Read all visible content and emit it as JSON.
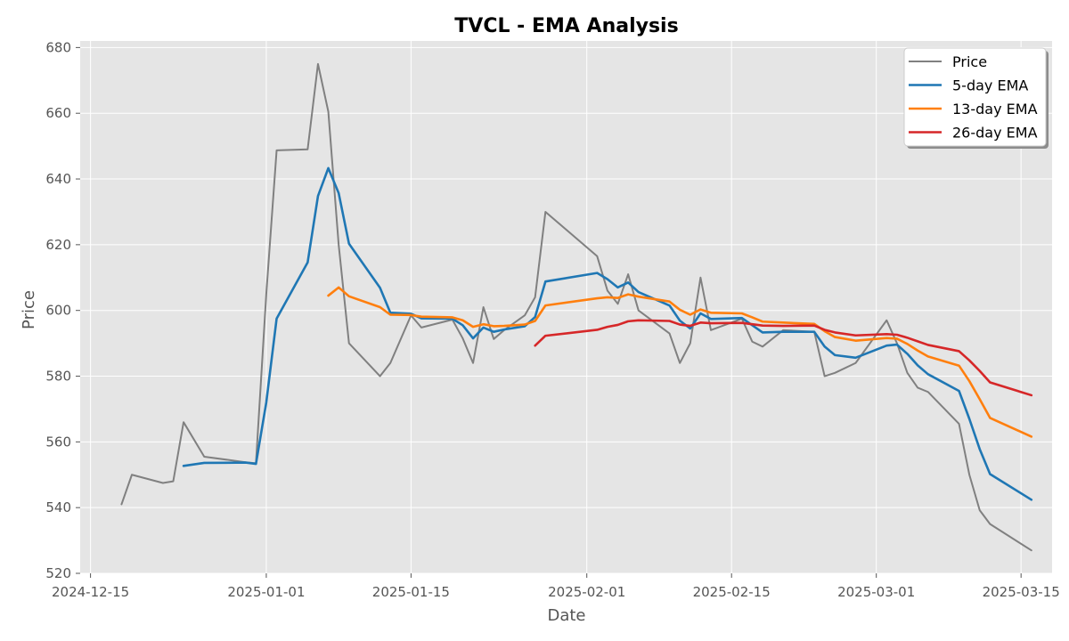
{
  "chart_data": {
    "type": "line",
    "title": "TVCL - EMA Analysis",
    "xlabel": "Date",
    "ylabel": "Price",
    "ylim": [
      520,
      682
    ],
    "xlim": [
      "2024-12-14",
      "2025-03-18"
    ],
    "grid": true,
    "legend": "top-right",
    "y_ticks": [
      520,
      540,
      560,
      580,
      600,
      620,
      640,
      660,
      680
    ],
    "x_ticks": [
      {
        "date": "2024-12-15",
        "label": "2024-12-15"
      },
      {
        "date": "2025-01-01",
        "label": "2025-01-01"
      },
      {
        "date": "2025-01-15",
        "label": "2025-01-15"
      },
      {
        "date": "2025-02-01",
        "label": "2025-02-01"
      },
      {
        "date": "2025-02-15",
        "label": "2025-02-15"
      },
      {
        "date": "2025-03-01",
        "label": "2025-03-01"
      },
      {
        "date": "2025-03-15",
        "label": "2025-03-15"
      }
    ],
    "series": [
      {
        "name": "Price",
        "color": "#808080",
        "points": [
          [
            "2024-12-18",
            541
          ],
          [
            "2024-12-19",
            550
          ],
          [
            "2024-12-22",
            547.5
          ],
          [
            "2024-12-23",
            548
          ],
          [
            "2024-12-24",
            566
          ],
          [
            "2024-12-26",
            555.5
          ],
          [
            "2024-12-30",
            553.8
          ],
          [
            "2024-12-31",
            553.5
          ],
          [
            "2025-01-01",
            605
          ],
          [
            "2025-01-02",
            648.7
          ],
          [
            "2025-01-05",
            649
          ],
          [
            "2025-01-06",
            675
          ],
          [
            "2025-01-07",
            660.5
          ],
          [
            "2025-01-08",
            620
          ],
          [
            "2025-01-09",
            590
          ],
          [
            "2025-01-12",
            580
          ],
          [
            "2025-01-13",
            584
          ],
          [
            "2025-01-15",
            598.5
          ],
          [
            "2025-01-16",
            594.8
          ],
          [
            "2025-01-19",
            597.2
          ],
          [
            "2025-01-20",
            591.5
          ],
          [
            "2025-01-21",
            584
          ],
          [
            "2025-01-22",
            601
          ],
          [
            "2025-01-23",
            591.3
          ],
          [
            "2025-01-24",
            594
          ],
          [
            "2025-01-26",
            598.5
          ],
          [
            "2025-01-27",
            604
          ],
          [
            "2025-01-28",
            630
          ],
          [
            "2025-02-02",
            616.5
          ],
          [
            "2025-02-03",
            606
          ],
          [
            "2025-02-04",
            602
          ],
          [
            "2025-02-05",
            611
          ],
          [
            "2025-02-06",
            600
          ],
          [
            "2025-02-09",
            593
          ],
          [
            "2025-02-10",
            584
          ],
          [
            "2025-02-11",
            590
          ],
          [
            "2025-02-12",
            610
          ],
          [
            "2025-02-13",
            594
          ],
          [
            "2025-02-16",
            597.5
          ],
          [
            "2025-02-17",
            590.5
          ],
          [
            "2025-02-18",
            589
          ],
          [
            "2025-02-20",
            594
          ],
          [
            "2025-02-23",
            593.5
          ],
          [
            "2025-02-24",
            580
          ],
          [
            "2025-02-25",
            581
          ],
          [
            "2025-02-27",
            584
          ],
          [
            "2025-03-02",
            597
          ],
          [
            "2025-03-03",
            590
          ],
          [
            "2025-03-04",
            581
          ],
          [
            "2025-03-05",
            576.5
          ],
          [
            "2025-03-06",
            575.2
          ],
          [
            "2025-03-09",
            565.5
          ],
          [
            "2025-03-10",
            550
          ],
          [
            "2025-03-11",
            539.2
          ],
          [
            "2025-03-12",
            535
          ],
          [
            "2025-03-16",
            527
          ]
        ]
      },
      {
        "name": "5-day EMA",
        "color": "#1f77b4",
        "points": [
          [
            "2024-12-24",
            552.7
          ],
          [
            "2024-12-26",
            553.6
          ],
          [
            "2024-12-30",
            553.7
          ],
          [
            "2024-12-31",
            553.3
          ],
          [
            "2025-01-01",
            572
          ],
          [
            "2025-01-02",
            597.5
          ],
          [
            "2025-01-05",
            614.6
          ],
          [
            "2025-01-06",
            634.8
          ],
          [
            "2025-01-07",
            643.3
          ],
          [
            "2025-01-08",
            635.7
          ],
          [
            "2025-01-09",
            620.3
          ],
          [
            "2025-01-12",
            606.9
          ],
          [
            "2025-01-13",
            599.3
          ],
          [
            "2025-01-15",
            599
          ],
          [
            "2025-01-16",
            597.6
          ],
          [
            "2025-01-19",
            597.5
          ],
          [
            "2025-01-20",
            595.5
          ],
          [
            "2025-01-21",
            591.5
          ],
          [
            "2025-01-22",
            594.8
          ],
          [
            "2025-01-23",
            593.5
          ],
          [
            "2025-01-24",
            594.2
          ],
          [
            "2025-01-26",
            595.2
          ],
          [
            "2025-01-27",
            598
          ],
          [
            "2025-01-28",
            608.8
          ],
          [
            "2025-02-02",
            611.4
          ],
          [
            "2025-02-03",
            609.5
          ],
          [
            "2025-02-04",
            607
          ],
          [
            "2025-02-05",
            608.5
          ],
          [
            "2025-02-06",
            605.6
          ],
          [
            "2025-02-09",
            601.5
          ],
          [
            "2025-02-10",
            596.9
          ],
          [
            "2025-02-11",
            594.5
          ],
          [
            "2025-02-12",
            599.1
          ],
          [
            "2025-02-13",
            597.4
          ],
          [
            "2025-02-16",
            597.7
          ],
          [
            "2025-02-17",
            595.5
          ],
          [
            "2025-02-18",
            593.3
          ],
          [
            "2025-02-20",
            593.5
          ],
          [
            "2025-02-23",
            593.5
          ],
          [
            "2025-02-24",
            589
          ],
          [
            "2025-02-25",
            586.4
          ],
          [
            "2025-02-27",
            585.6
          ],
          [
            "2025-03-02",
            589.3
          ],
          [
            "2025-03-03",
            589.6
          ],
          [
            "2025-03-04",
            586.8
          ],
          [
            "2025-03-05",
            583.3
          ],
          [
            "2025-03-06",
            580.6
          ],
          [
            "2025-03-09",
            575.5
          ],
          [
            "2025-03-10",
            567
          ],
          [
            "2025-03-11",
            557.8
          ],
          [
            "2025-03-12",
            550.2
          ],
          [
            "2025-03-16",
            542.4
          ]
        ]
      },
      {
        "name": "13-day EMA",
        "color": "#ff7f0e",
        "points": [
          [
            "2025-01-07",
            604.5
          ],
          [
            "2025-01-08",
            607
          ],
          [
            "2025-01-09",
            604.3
          ],
          [
            "2025-01-12",
            601
          ],
          [
            "2025-01-13",
            598.7
          ],
          [
            "2025-01-15",
            598.6
          ],
          [
            "2025-01-16",
            598.1
          ],
          [
            "2025-01-19",
            597.9
          ],
          [
            "2025-01-20",
            597
          ],
          [
            "2025-01-21",
            595
          ],
          [
            "2025-01-22",
            595.8
          ],
          [
            "2025-01-23",
            595.2
          ],
          [
            "2025-01-24",
            595.3
          ],
          [
            "2025-01-26",
            595.7
          ],
          [
            "2025-01-27",
            596.8
          ],
          [
            "2025-01-28",
            601.5
          ],
          [
            "2025-02-02",
            603.7
          ],
          [
            "2025-02-03",
            604
          ],
          [
            "2025-02-04",
            603.8
          ],
          [
            "2025-02-05",
            604.9
          ],
          [
            "2025-02-06",
            604.2
          ],
          [
            "2025-02-09",
            602.7
          ],
          [
            "2025-02-10",
            600.2
          ],
          [
            "2025-02-11",
            598.7
          ],
          [
            "2025-02-12",
            600.3
          ],
          [
            "2025-02-13",
            599.3
          ],
          [
            "2025-02-16",
            599.1
          ],
          [
            "2025-02-17",
            597.9
          ],
          [
            "2025-02-18",
            596.6
          ],
          [
            "2025-02-20",
            596.3
          ],
          [
            "2025-02-23",
            595.9
          ],
          [
            "2025-02-24",
            593.7
          ],
          [
            "2025-02-25",
            591.9
          ],
          [
            "2025-02-27",
            590.8
          ],
          [
            "2025-03-02",
            591.6
          ],
          [
            "2025-03-03",
            591.4
          ],
          [
            "2025-03-04",
            589.8
          ],
          [
            "2025-03-05",
            587.8
          ],
          [
            "2025-03-06",
            586
          ],
          [
            "2025-03-09",
            583.2
          ],
          [
            "2025-03-10",
            578.5
          ],
          [
            "2025-03-11",
            573
          ],
          [
            "2025-03-12",
            567.3
          ],
          [
            "2025-03-16",
            561.6
          ]
        ]
      },
      {
        "name": "26-day EMA",
        "color": "#d62728",
        "points": [
          [
            "2025-01-27",
            589.3
          ],
          [
            "2025-01-28",
            592.3
          ],
          [
            "2025-02-02",
            594.1
          ],
          [
            "2025-02-03",
            595
          ],
          [
            "2025-02-04",
            595.6
          ],
          [
            "2025-02-05",
            596.7
          ],
          [
            "2025-02-06",
            597
          ],
          [
            "2025-02-09",
            596.8
          ],
          [
            "2025-02-10",
            595.7
          ],
          [
            "2025-02-11",
            595.3
          ],
          [
            "2025-02-12",
            596.3
          ],
          [
            "2025-02-13",
            596.1
          ],
          [
            "2025-02-16",
            596.2
          ],
          [
            "2025-02-17",
            595.8
          ],
          [
            "2025-02-18",
            595.4
          ],
          [
            "2025-02-20",
            595.3
          ],
          [
            "2025-02-23",
            595.4
          ],
          [
            "2025-02-24",
            594.1
          ],
          [
            "2025-02-25",
            593.3
          ],
          [
            "2025-02-27",
            592.4
          ],
          [
            "2025-03-02",
            592.8
          ],
          [
            "2025-03-03",
            592.6
          ],
          [
            "2025-03-04",
            591.7
          ],
          [
            "2025-03-05",
            590.6
          ],
          [
            "2025-03-06",
            589.5
          ],
          [
            "2025-03-09",
            587.6
          ],
          [
            "2025-03-10",
            584.8
          ],
          [
            "2025-03-11",
            581.6
          ],
          [
            "2025-03-12",
            578.1
          ],
          [
            "2025-03-16",
            574.2
          ]
        ]
      }
    ]
  }
}
